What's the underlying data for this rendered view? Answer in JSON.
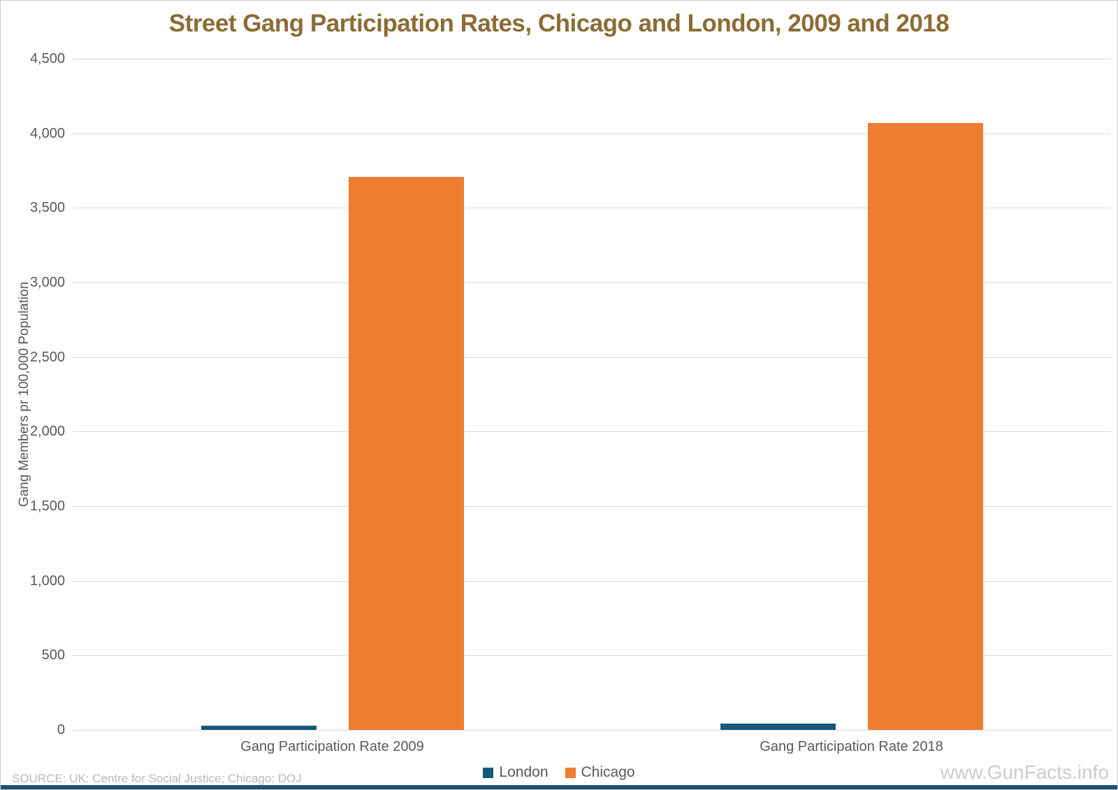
{
  "title": "Street Gang Participation Rates, Chicago and London, 2009 and 2018",
  "source": "SOURCE: UK: Centre for Social Justice; Chicago: DOJ",
  "watermark": "www.GunFacts.info",
  "colors": {
    "title": "#8b6c34",
    "axis_text": "#595959",
    "gridline": "#d9d9d9",
    "source_text": "#b9b9b9",
    "watermark_text": "#cccccc",
    "footer_bar": "#1a5174",
    "london": "#17597c",
    "chicago": "#ed7d31"
  },
  "chart_data": {
    "type": "bar",
    "title": "Street Gang Participation Rates, Chicago and London, 2009 and 2018",
    "xlabel": "",
    "ylabel": "Gang Members pr 100,000 Population",
    "ylim": [
      0,
      4500
    ],
    "ytick_step": 500,
    "ytick_labels": [
      "0",
      "500",
      "1,000",
      "1,500",
      "2,000",
      "2,500",
      "3,000",
      "3,500",
      "4,000",
      "4,500"
    ],
    "grid": true,
    "legend_position": "bottom",
    "categories": [
      "Gang Participation Rate 2009",
      "Gang Participation Rate 2018"
    ],
    "series": [
      {
        "name": "London",
        "color": "#17597c",
        "values": [
          28,
          44
        ]
      },
      {
        "name": "Chicago",
        "color": "#ed7d31",
        "values": [
          3710,
          4070
        ]
      }
    ]
  }
}
